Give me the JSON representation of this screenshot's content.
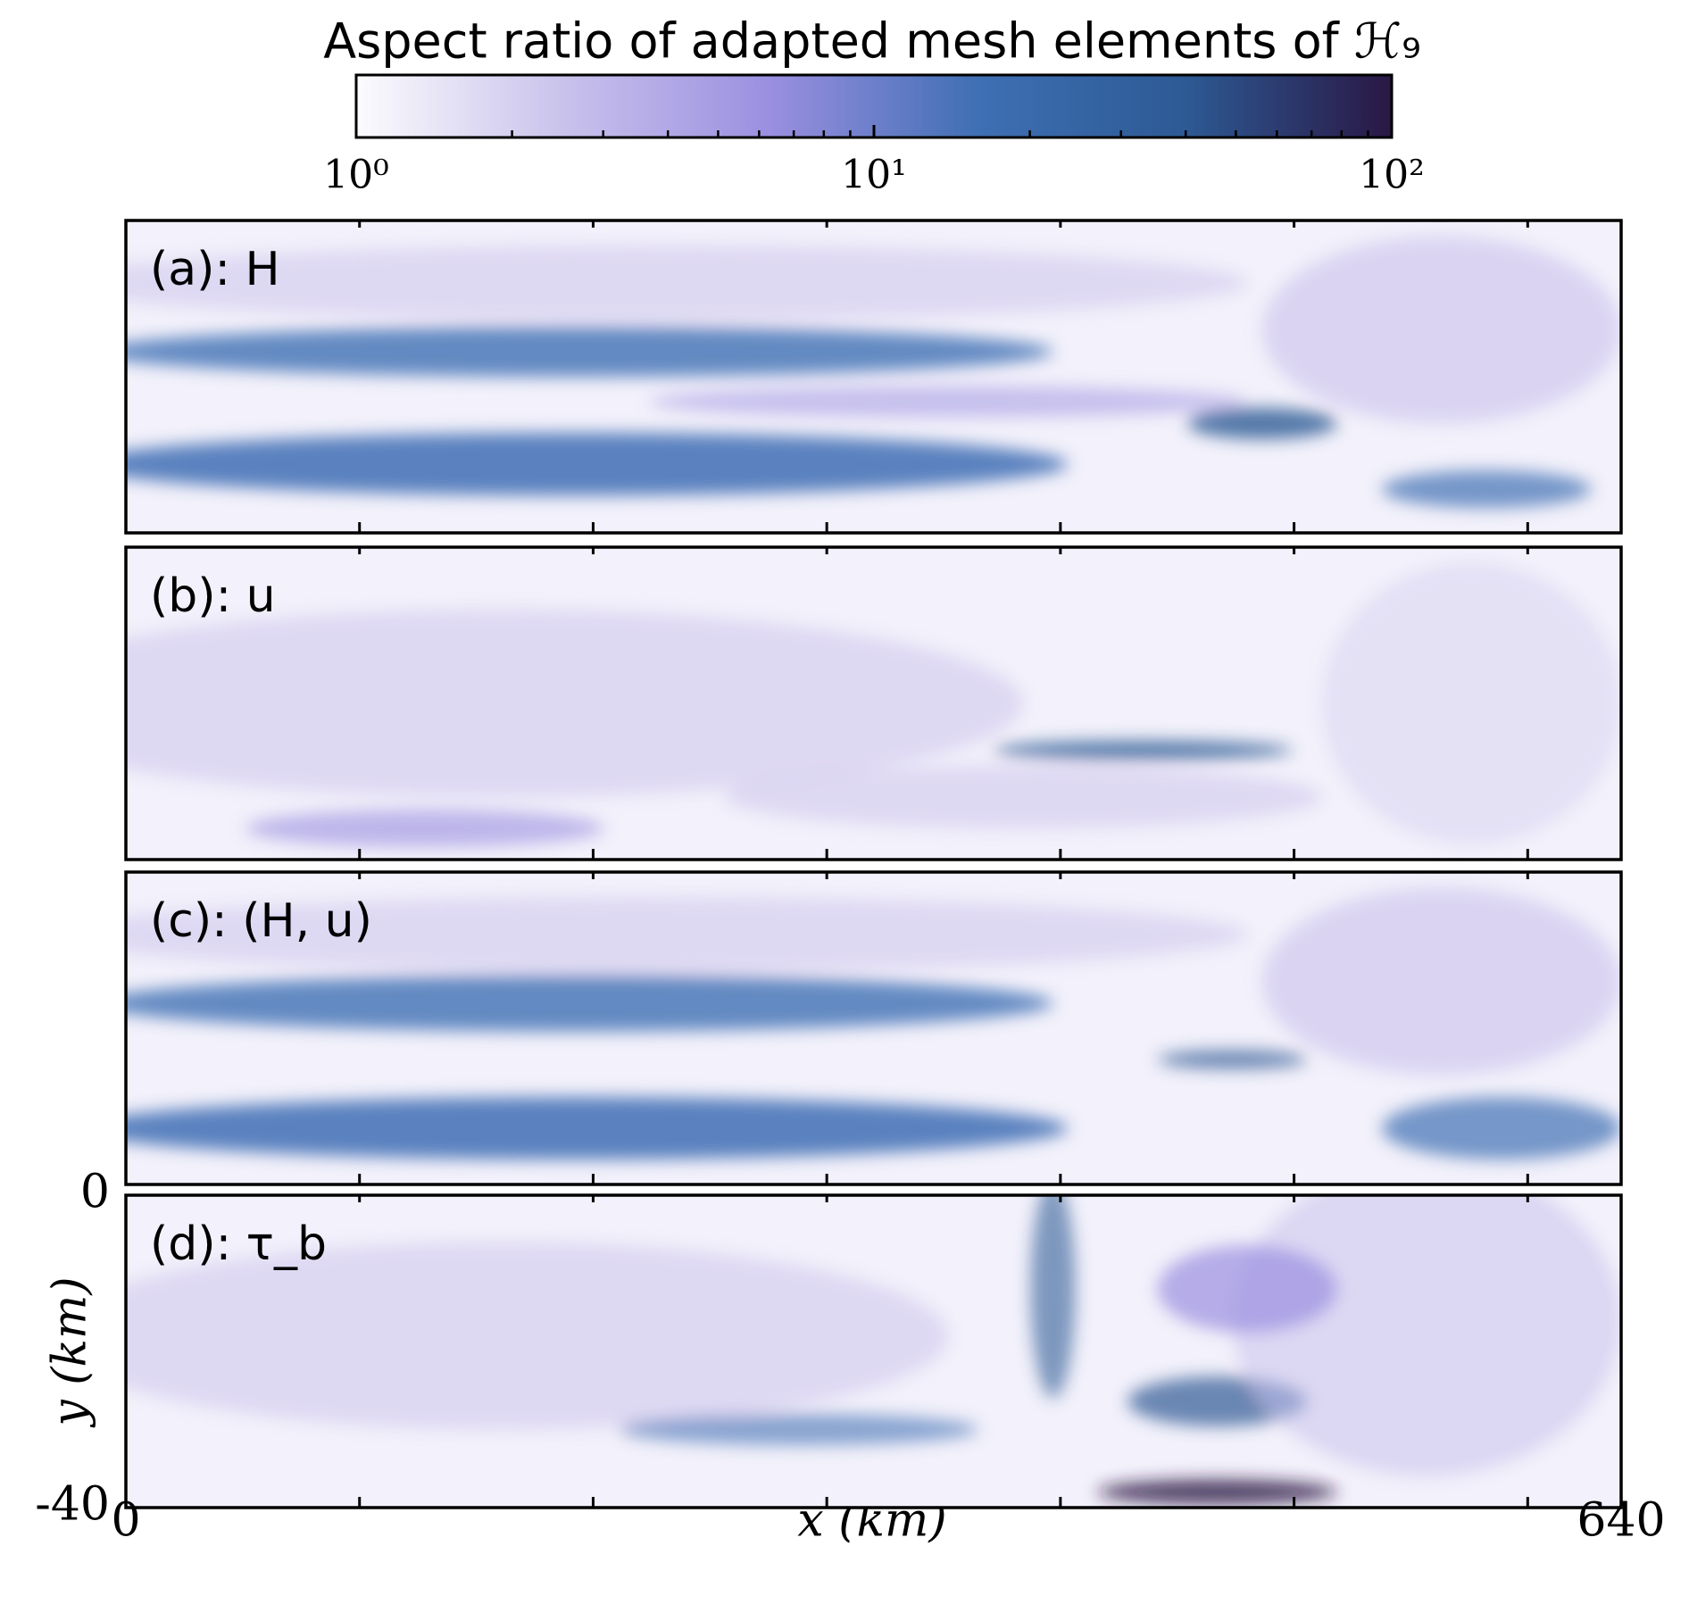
{
  "chart_data": {
    "type": "heatmap",
    "title": "Aspect ratio of adapted mesh elements of ℋ₉",
    "colorbar": {
      "scale": "log",
      "lim": [
        1,
        100
      ],
      "ticks": [
        {
          "value": 1,
          "label": "10⁰"
        },
        {
          "value": 10,
          "label": "10¹"
        },
        {
          "value": 100,
          "label": "10²"
        }
      ],
      "minor_ticks": [
        2,
        3,
        4,
        5,
        6,
        7,
        8,
        9,
        20,
        30,
        40,
        50,
        60,
        70,
        80,
        90
      ],
      "colors": [
        "#fcfbfd",
        "#c9c2ec",
        "#9a8fe0",
        "#3f6fb4",
        "#2d5a94",
        "#2a1744"
      ]
    },
    "panels": [
      {
        "label": "(a): H"
      },
      {
        "label": "(b): u"
      },
      {
        "label": "(c): (H, u)"
      },
      {
        "label": "(d): τ_b"
      }
    ],
    "xlim": [
      0,
      640
    ],
    "xticks": [
      0,
      640
    ],
    "xminor_ticks": [
      100,
      200,
      300,
      400,
      500,
      600
    ],
    "ylim": [
      -40,
      0
    ],
    "yticks": [
      -40,
      0
    ],
    "xlabel": "x (km)",
    "ylabel": "y (km)"
  }
}
